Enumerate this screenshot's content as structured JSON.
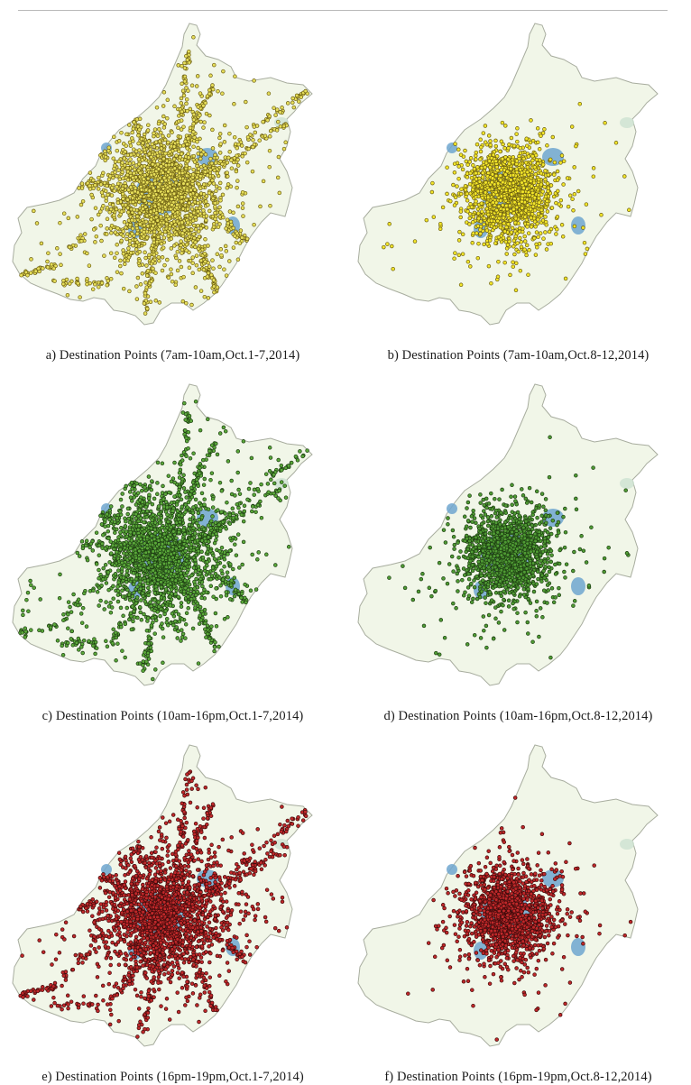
{
  "figure": {
    "panels": [
      {
        "id": "a",
        "caption": "a) Destination Points (7am-10am,Oct.1-7,2014)",
        "point_color": "#e6de5a",
        "point_edge": "#6b5e12",
        "density": "high",
        "spread": "wide"
      },
      {
        "id": "b",
        "caption": "b) Destination Points (7am-10am,Oct.8-12,2014)",
        "point_color": "#f2e529",
        "point_edge": "#6b5e12",
        "density": "medium",
        "spread": "central"
      },
      {
        "id": "c",
        "caption": "c) Destination Points (10am-16pm,Oct.1-7,2014)",
        "point_color": "#5aa83a",
        "point_edge": "#1d3d12",
        "density": "high",
        "spread": "wide"
      },
      {
        "id": "d",
        "caption": "d) Destination Points (10am-16pm,Oct.8-12,2014)",
        "point_color": "#4f9b34",
        "point_edge": "#1d3d12",
        "density": "medium",
        "spread": "central"
      },
      {
        "id": "e",
        "caption": "e) Destination Points (16pm-19pm,Oct.1-7,2014)",
        "point_color": "#c0282a",
        "point_edge": "#3f0b0b",
        "density": "high",
        "spread": "wide"
      },
      {
        "id": "f",
        "caption": "f) Destination Points (16pm-19pm,Oct.8-12,2014)",
        "point_color": "#c0282a",
        "point_edge": "#3f0b0b",
        "density": "medium",
        "spread": "central"
      }
    ],
    "map_fill": "#f1f6e8",
    "map_outline": "#a8ad9f",
    "hotspot_color": "#6ea6cf",
    "hotspot_light": "#cfe3d2"
  }
}
